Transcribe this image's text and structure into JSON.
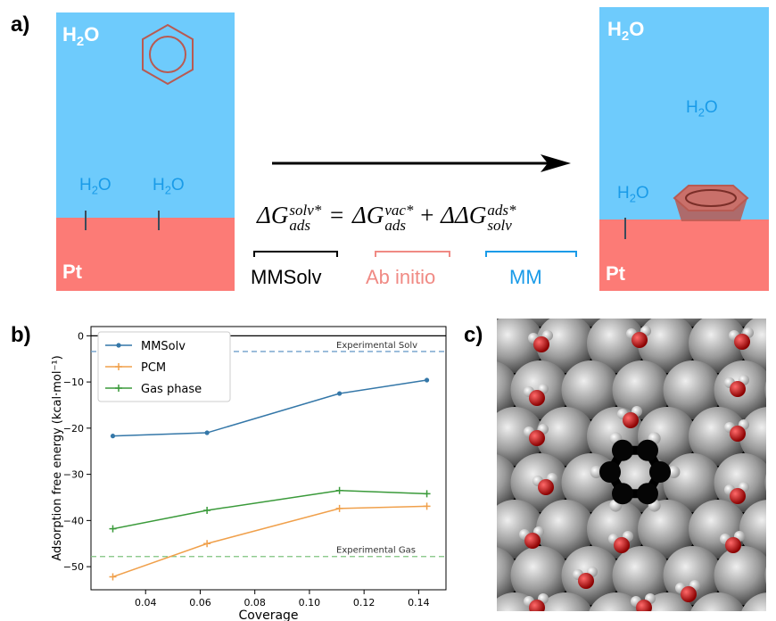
{
  "panel_a": {
    "label": "a)",
    "left_box": {
      "water_label": "H",
      "water_sub": "2",
      "water_tail": "O",
      "metal_label": "Pt",
      "h2o_left": "H",
      "h2o_left_sub": "2",
      "h2o_left_tail": "O",
      "h2o_right": "H",
      "h2o_right_sub": "2",
      "h2o_right_tail": "O"
    },
    "right_box": {
      "water_label": "H",
      "water_sub": "2",
      "water_tail": "O",
      "metal_label": "Pt",
      "h2o_mid": "H",
      "h2o_mid_sub": "2",
      "h2o_mid_tail": "O",
      "h2o_low": "H",
      "h2o_low_sub": "2",
      "h2o_low_tail": "O"
    },
    "equation": {
      "lhs": "ΔG",
      "lhs_sup": "solv*",
      "lhs_sub": "ads",
      "eq": "=",
      "t1": "ΔG",
      "t1_sup": "vac*",
      "t1_sub": "ads",
      "plus": "+",
      "t2": "ΔΔG",
      "t2_sup": "ads*",
      "t2_sub": "solv"
    },
    "term_labels": {
      "mmsolv": "MMSolv",
      "abinitio": "Ab initio",
      "mm": "MM"
    },
    "colors": {
      "water": "#6ecbfc",
      "metal": "#fc7b76",
      "benzene": "#b85a52",
      "abinitio": "#f08a84",
      "mm": "#1a9be8"
    }
  },
  "panel_b": {
    "label": "b)"
  },
  "panel_c": {
    "label": "c)"
  },
  "chart_data": {
    "type": "line",
    "xlabel": "Coverage",
    "ylabel": "Adsorption free energy (kcal·mol⁻¹)",
    "xlim": [
      0.02,
      0.15
    ],
    "ylim": [
      -55,
      2
    ],
    "xticks": [
      0.04,
      0.06,
      0.08,
      0.1,
      0.12,
      0.14
    ],
    "xtick_labels": [
      "0.04",
      "0.06",
      "0.08",
      "0.10",
      "0.12",
      "0.14"
    ],
    "yticks": [
      0,
      -10,
      -20,
      -30,
      -40,
      -50
    ],
    "ytick_labels": [
      "0",
      "−10",
      "−20",
      "−30",
      "−40",
      "−50"
    ],
    "series": [
      {
        "name": "MMSolv",
        "color": "#3477a8",
        "x": [
          0.028,
          0.0625,
          0.111,
          0.143
        ],
        "y": [
          -21.7,
          -21.0,
          -12.5,
          -9.6
        ]
      },
      {
        "name": "PCM",
        "color": "#f0a04b",
        "x": [
          0.028,
          0.0625,
          0.111,
          0.143
        ],
        "y": [
          -52.2,
          -45.0,
          -37.4,
          -36.9
        ]
      },
      {
        "name": "Gas phase",
        "color": "#3a9a3a",
        "x": [
          0.028,
          0.0625,
          0.111,
          0.143
        ],
        "y": [
          -41.8,
          -37.8,
          -33.5,
          -34.2
        ]
      }
    ],
    "hlines": [
      {
        "y": 0,
        "color": "#000000",
        "style": "solid",
        "label": ""
      },
      {
        "y": -3.4,
        "color": "#6f9fcb",
        "style": "dashed",
        "label": "Experimental Solv"
      },
      {
        "y": -47.8,
        "color": "#7fc47f",
        "style": "dashed",
        "label": "Experimental Gas"
      }
    ],
    "legend_position": "top-left"
  }
}
